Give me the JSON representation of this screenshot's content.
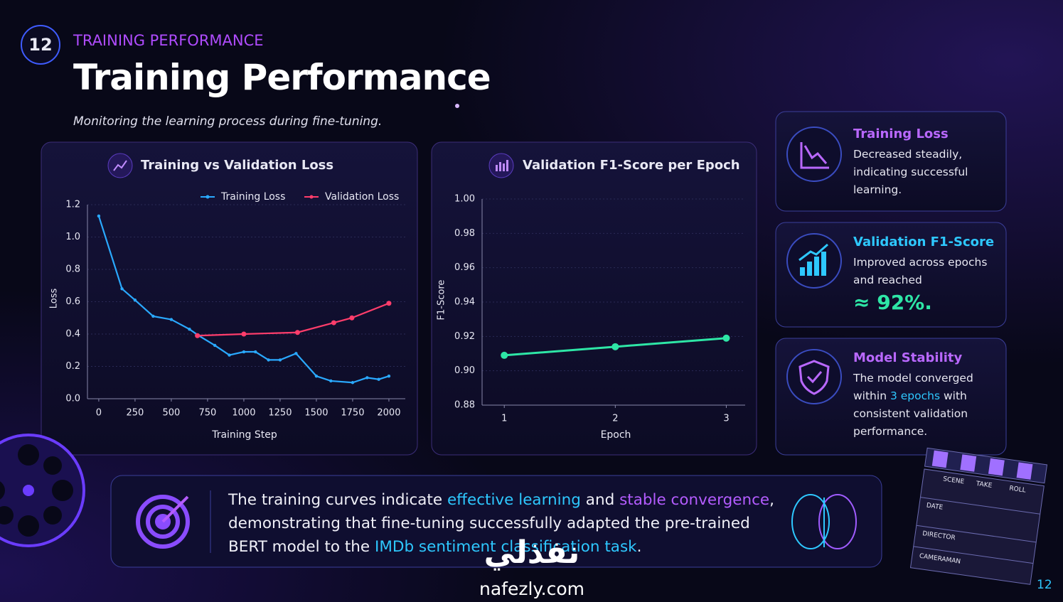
{
  "slide_number": "12",
  "section_label": "TRAINING PERFORMANCE",
  "title": "Training Performance",
  "subtitle": "Monitoring the learning process during fine-tuning.",
  "chart_data": [
    {
      "type": "line",
      "title": "Training vs Validation Loss",
      "x_label": "Training Step",
      "y_label": "Loss",
      "xlim": [
        -78,
        2113
      ],
      "ylim": [
        0,
        1.2
      ],
      "xticks": [
        0,
        250,
        500,
        750,
        1000,
        1250,
        1500,
        1750,
        2000
      ],
      "yticks": [
        {
          "value": 0,
          "label": "0.0"
        },
        0.2,
        0.4,
        0.6,
        0.8,
        {
          "value": 1,
          "label": "1.0"
        },
        1.2
      ],
      "grid": true,
      "legend": "upper right",
      "series": [
        {
          "name": "Training Loss",
          "color": "#2aa9ff",
          "x": [
            0,
            160,
            250,
            375,
            500,
            625,
            690,
            800,
            900,
            1000,
            1080,
            1170,
            1250,
            1360,
            1500,
            1600,
            1750,
            1850,
            1930,
            2000
          ],
          "values": [
            1.13,
            0.68,
            0.61,
            0.51,
            0.49,
            0.43,
            0.39,
            0.33,
            0.27,
            0.29,
            0.29,
            0.24,
            0.24,
            0.28,
            0.14,
            0.11,
            0.1,
            0.13,
            0.12,
            0.14
          ]
        },
        {
          "name": "Validation Loss",
          "color": "#ff3d6b",
          "x": [
            680,
            1000,
            1370,
            1620,
            1745,
            2000
          ],
          "values": [
            0.39,
            0.4,
            0.41,
            0.47,
            0.5,
            0.59
          ]
        }
      ]
    },
    {
      "type": "line",
      "title": "Validation F1-Score per Epoch",
      "x_label": "Epoch",
      "y_label": "F1-Score",
      "xlim": [
        0.8,
        3.17
      ],
      "ylim": [
        0.88,
        1.0
      ],
      "xticks": [
        1,
        2,
        3
      ],
      "yticks": [
        {
          "value": 0.88,
          "label": "0.88"
        },
        {
          "value": 0.9,
          "label": "0.90"
        },
        {
          "value": 0.92,
          "label": "0.92"
        },
        {
          "value": 0.94,
          "label": "0.94"
        },
        {
          "value": 0.96,
          "label": "0.96"
        },
        {
          "value": 0.98,
          "label": "0.98"
        },
        {
          "value": 1,
          "label": "1.00"
        }
      ],
      "grid": true,
      "series": [
        {
          "name": "Validation F1-Score",
          "color": "#2ee6a6",
          "x": [
            1,
            2,
            3
          ],
          "values": [
            0.909,
            0.914,
            0.919
          ]
        }
      ]
    }
  ],
  "cards": [
    {
      "title": "Training Loss",
      "body": [
        "Decreased steadily, indicating successful learning."
      ]
    },
    {
      "title": "Validation F1-Score",
      "body": [
        "Improved across epochs and reached"
      ],
      "highlight": "≈ 92%."
    },
    {
      "title": "Model Stability",
      "body": [
        "The model converged within ",
        "3 epochs",
        " with consistent validation performance."
      ]
    }
  ],
  "summary": [
    "The training curves indicate ",
    "effective learning",
    " and ",
    "stable convergence",
    ", demonstrating that fine-tuning successfully adapted the pre-trained BERT model to the ",
    "IMDb sentiment classification task",
    "."
  ],
  "clapperboard": [
    "SCENE",
    "TAKE",
    "ROLL",
    "DATE",
    "DIRECTOR",
    "CAMERAMAN"
  ],
  "watermark": {
    "arabic": "نفذلي",
    "latin": "nafezly.com"
  },
  "page_number": "12"
}
